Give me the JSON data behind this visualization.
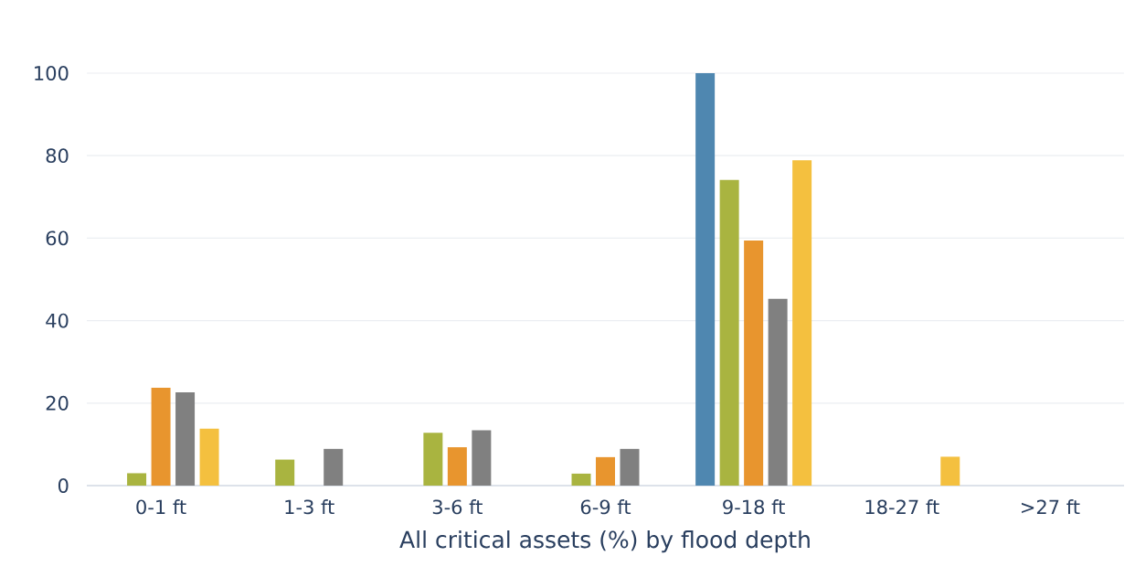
{
  "chart_data": {
    "type": "bar",
    "xlabel": "All critical assets (%) by flood depth",
    "categories": [
      "0-1 ft",
      "1-3 ft",
      "3-6 ft",
      "6-9 ft",
      "9-18 ft",
      "18-27 ft",
      ">27 ft"
    ],
    "series": [
      {
        "color": "#4f87b0",
        "values": [
          null,
          null,
          null,
          null,
          100,
          null,
          null
        ]
      },
      {
        "color": "#a9b440",
        "values": [
          3.0,
          6.3,
          12.8,
          2.9,
          74.1,
          null,
          null
        ]
      },
      {
        "color": "#e8952e",
        "values": [
          23.7,
          null,
          9.3,
          6.9,
          59.4,
          null,
          null
        ]
      },
      {
        "color": "#808080",
        "values": [
          22.6,
          8.9,
          13.4,
          8.9,
          45.3,
          null,
          null
        ]
      },
      {
        "color": "#f4c03f",
        "values": [
          13.8,
          null,
          null,
          null,
          78.9,
          7.0,
          null
        ]
      }
    ],
    "ylim": [
      0,
      100
    ],
    "yticks": [
      0,
      20,
      40,
      60,
      80,
      100
    ],
    "grid": "y"
  }
}
